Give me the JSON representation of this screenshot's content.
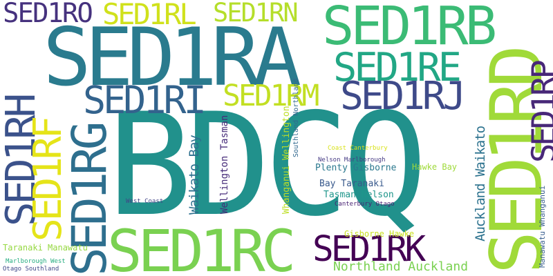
{
  "words": [
    {
      "text": "BDCQ",
      "color": "#21918c"
    },
    {
      "text": "SED1RA",
      "color": "#2a7b8e"
    },
    {
      "text": "SED1RB",
      "color": "#3bbb75"
    },
    {
      "text": "SED1RD",
      "color": "#a0da39"
    },
    {
      "text": "SED1RC",
      "color": "#7ad151"
    },
    {
      "text": "SED1RO",
      "color": "#46327e"
    },
    {
      "text": "SED1RL",
      "color": "#d0e11c"
    },
    {
      "text": "SED1RN",
      "color": "#b5de2b"
    },
    {
      "text": "SED1RE",
      "color": "#22a785"
    },
    {
      "text": "SED1RI",
      "color": "#33638d"
    },
    {
      "text": "SED1RM",
      "color": "#c2df23"
    },
    {
      "text": "SED1RJ",
      "color": "#3e4a89"
    },
    {
      "text": "SED1RH",
      "color": "#3b528b"
    },
    {
      "text": "SED1RF",
      "color": "#e5e419"
    },
    {
      "text": "SED1RG",
      "color": "#2e6f8e"
    },
    {
      "text": "SED1RP",
      "color": "#482878"
    },
    {
      "text": "SED1RK",
      "color": "#440154"
    },
    {
      "text": "Northland Auckland",
      "color": "#7ad151"
    },
    {
      "text": "Auckland Waikato",
      "color": "#2c728e"
    },
    {
      "text": "Waikato Bay",
      "color": "#2d708e"
    },
    {
      "text": "Wellington Tasman",
      "color": "#472c7a"
    },
    {
      "text": "Whanganui Wellington",
      "color": "#bddf26"
    },
    {
      "text": "Southland Northland",
      "color": "#31688e"
    },
    {
      "text": "Manawatu Whanganui",
      "color": "#365c8d"
    },
    {
      "text": "Plenty Gisborne",
      "color": "#2a788e"
    },
    {
      "text": "Hawke Bay",
      "color": "#9fda3a"
    },
    {
      "text": "Bay Taranaki",
      "color": "#38598c"
    },
    {
      "text": "Tasman Nelson",
      "color": "#1f968b"
    },
    {
      "text": "Coast Canterbury",
      "color": "#d8e219"
    },
    {
      "text": "Nelson Marlborough",
      "color": "#443983"
    },
    {
      "text": "Canterbury Otago",
      "color": "#482173"
    },
    {
      "text": "West Coast",
      "color": "#414487"
    },
    {
      "text": "Gisborne Hawke",
      "color": "#c8e020"
    },
    {
      "text": "Taranaki Manawatu",
      "color": "#95d840"
    },
    {
      "text": "Marlborough West",
      "color": "#27ad81"
    },
    {
      "text": "Otago Southland",
      "color": "#3f4788"
    }
  ]
}
